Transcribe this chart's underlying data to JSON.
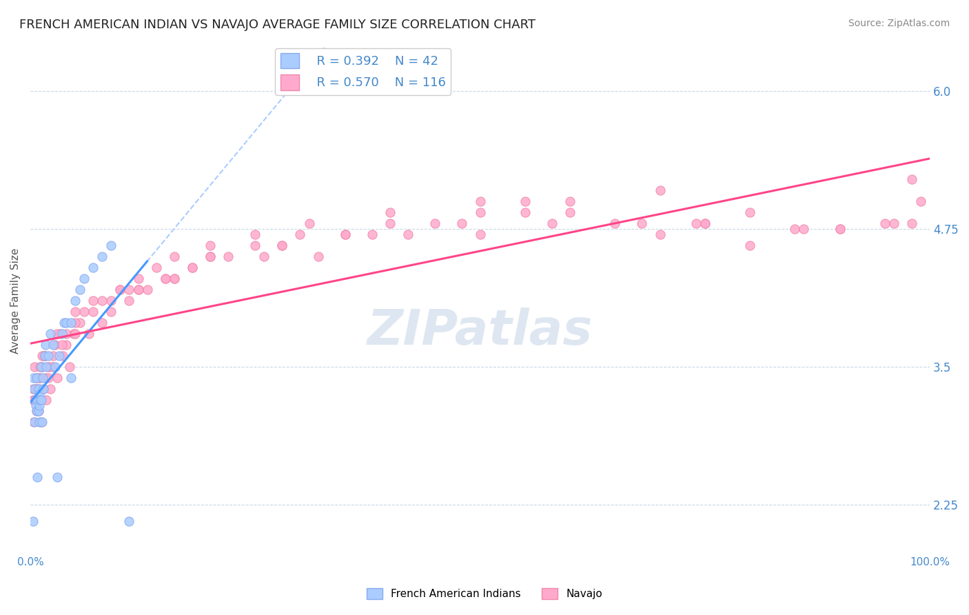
{
  "title": "FRENCH AMERICAN INDIAN VS NAVAJO AVERAGE FAMILY SIZE CORRELATION CHART",
  "source": "Source: ZipAtlas.com",
  "ylabel": "Average Family Size",
  "xlim": [
    0,
    1
  ],
  "ylim": [
    1.8,
    6.4
  ],
  "yticks": [
    2.25,
    3.5,
    4.75,
    6.0
  ],
  "xticks": [
    0.0,
    1.0
  ],
  "xticklabels": [
    "0.0%",
    "100.0%"
  ],
  "background_color": "#ffffff",
  "grid_color": "#c8d8e8",
  "title_color": "#222222",
  "title_fontsize": 13,
  "source_color": "#888888",
  "source_fontsize": 10,
  "ylabel_fontsize": 11,
  "ytick_color": "#4488cc",
  "ytick_fontsize": 12,
  "xtick_color": "#4488cc",
  "xtick_fontsize": 11,
  "legend_R1": "R = 0.392",
  "legend_N1": "N = 42",
  "legend_R2": "R = 0.570",
  "legend_N2": "N = 116",
  "legend_color": "#4488cc",
  "series1_color": "#aaccff",
  "series2_color": "#ffaacc",
  "series1_edge": "#88aaee",
  "series2_edge": "#ee88aa",
  "line1_color": "#4499ff",
  "line2_color": "#ff4488",
  "dash_color": "#aaccff",
  "watermark_color": "#c8d8e8",
  "series1_x": [
    0.003,
    0.004,
    0.005,
    0.005,
    0.006,
    0.006,
    0.007,
    0.007,
    0.008,
    0.008,
    0.009,
    0.009,
    0.01,
    0.01,
    0.01,
    0.011,
    0.012,
    0.012,
    0.013,
    0.014,
    0.015,
    0.016,
    0.017,
    0.018,
    0.02,
    0.022,
    0.025,
    0.028,
    0.03,
    0.032,
    0.035,
    0.038,
    0.04,
    0.045,
    0.05,
    0.055,
    0.06,
    0.07,
    0.08,
    0.09,
    0.11,
    0.045
  ],
  "series1_y": [
    2.1,
    3.4,
    3.3,
    3.0,
    3.2,
    3.15,
    3.4,
    3.1,
    2.5,
    3.2,
    3.1,
    3.3,
    3.15,
    3.0,
    3.25,
    3.2,
    3.5,
    3.2,
    3.0,
    3.4,
    3.3,
    3.6,
    3.7,
    3.5,
    3.6,
    3.8,
    3.7,
    3.5,
    2.5,
    3.6,
    3.8,
    3.9,
    3.9,
    3.9,
    4.1,
    4.2,
    4.3,
    4.4,
    4.5,
    4.6,
    2.1,
    3.4
  ],
  "series2_x": [
    0.003,
    0.004,
    0.005,
    0.006,
    0.007,
    0.008,
    0.009,
    0.01,
    0.011,
    0.012,
    0.013,
    0.015,
    0.016,
    0.017,
    0.018,
    0.02,
    0.022,
    0.025,
    0.028,
    0.03,
    0.033,
    0.036,
    0.04,
    0.044,
    0.048,
    0.055,
    0.06,
    0.065,
    0.07,
    0.08,
    0.09,
    0.1,
    0.11,
    0.12,
    0.13,
    0.14,
    0.15,
    0.16,
    0.18,
    0.2,
    0.22,
    0.25,
    0.28,
    0.31,
    0.35,
    0.4,
    0.45,
    0.5,
    0.55,
    0.6,
    0.65,
    0.7,
    0.75,
    0.8,
    0.85,
    0.9,
    0.95,
    0.98,
    0.003,
    0.005,
    0.007,
    0.009,
    0.012,
    0.015,
    0.02,
    0.025,
    0.035,
    0.05,
    0.07,
    0.09,
    0.12,
    0.16,
    0.2,
    0.25,
    0.3,
    0.4,
    0.5,
    0.6,
    0.7,
    0.8,
    0.05,
    0.08,
    0.12,
    0.16,
    0.008,
    0.013,
    0.18,
    0.28,
    0.38,
    0.48,
    0.006,
    0.011,
    0.016,
    0.03,
    0.05,
    0.1,
    0.2,
    0.35,
    0.55,
    0.75,
    0.04,
    0.15,
    0.32,
    0.5,
    0.68,
    0.86,
    0.022,
    0.11,
    0.26,
    0.42,
    0.58,
    0.74,
    0.9,
    0.96,
    0.98,
    0.99
  ],
  "series2_y": [
    3.2,
    3.0,
    3.5,
    3.3,
    3.4,
    3.2,
    3.1,
    3.3,
    3.4,
    3.0,
    3.5,
    3.3,
    3.6,
    3.4,
    3.2,
    3.5,
    3.3,
    3.6,
    3.7,
    3.4,
    3.8,
    3.6,
    3.7,
    3.5,
    3.8,
    3.9,
    4.0,
    3.8,
    4.1,
    3.9,
    4.0,
    4.2,
    4.1,
    4.3,
    4.2,
    4.4,
    4.3,
    4.5,
    4.4,
    4.6,
    4.5,
    4.7,
    4.6,
    4.8,
    4.7,
    4.9,
    4.8,
    4.9,
    5.0,
    4.9,
    4.8,
    4.7,
    4.8,
    4.6,
    4.75,
    4.75,
    4.8,
    4.8,
    3.3,
    3.2,
    3.1,
    3.4,
    3.5,
    3.6,
    3.4,
    3.5,
    3.7,
    3.8,
    4.0,
    4.1,
    4.2,
    4.3,
    4.5,
    4.6,
    4.7,
    4.8,
    5.0,
    5.0,
    5.1,
    4.9,
    3.9,
    4.1,
    4.2,
    4.3,
    3.3,
    3.6,
    4.4,
    4.6,
    4.7,
    4.8,
    3.3,
    3.5,
    3.6,
    3.8,
    4.0,
    4.2,
    4.5,
    4.7,
    4.9,
    4.8,
    3.8,
    4.3,
    4.5,
    4.7,
    4.8,
    4.75,
    3.5,
    4.2,
    4.5,
    4.7,
    4.8,
    4.8,
    4.75,
    4.8,
    5.2,
    5.0
  ]
}
